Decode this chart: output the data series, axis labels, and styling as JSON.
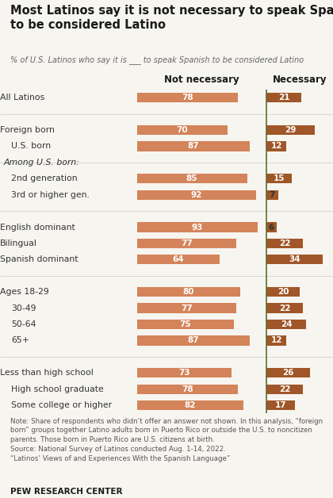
{
  "title": "Most Latinos say it is not necessary to speak Spanish\nto be considered Latino",
  "subtitle": "% of U.S. Latinos who say it is ___ to speak Spanish to be considered Latino",
  "col_header_not": "Not necessary",
  "col_header_nec": "Necessary",
  "categories": [
    "All Latinos",
    "",
    "Foreign born",
    "U.S. born",
    "HEADER:Among U.S. born:",
    "2nd generation",
    "3rd or higher gen.",
    "",
    "English dominant",
    "Bilingual",
    "Spanish dominant",
    "",
    "Ages 18-29",
    "30-49",
    "50-64",
    "65+",
    "",
    "Less than high school",
    "High school graduate",
    "Some college or higher"
  ],
  "not_necessary": [
    78,
    null,
    70,
    87,
    null,
    85,
    92,
    null,
    93,
    77,
    64,
    null,
    80,
    77,
    75,
    87,
    null,
    73,
    78,
    82
  ],
  "necessary": [
    21,
    null,
    29,
    12,
    null,
    15,
    7,
    null,
    6,
    22,
    34,
    null,
    20,
    22,
    24,
    12,
    null,
    26,
    22,
    17
  ],
  "color_not_necessary": "#d4845a",
  "color_necessary": "#a05628",
  "divider_color": "#5a6e2a",
  "note_text": "Note: Share of respondents who didn’t offer an answer not shown. In this analysis, “foreign\nborn” groups together Latino adults born in Puerto Rico or outside the U.S. to noncitizen\nparents. Those born in Puerto Rico are U.S. citizens at birth.\nSource: National Survey of Latinos conducted Aug. 1-14, 2022.\n“Latinos’ Views of and Experiences With the Spanish Language”",
  "source_label": "PEW RESEARCH CENTER",
  "background_color": "#f7f5f0",
  "bar_height": 0.6,
  "label_fontsize": 7.8,
  "value_fontsize": 7.5
}
